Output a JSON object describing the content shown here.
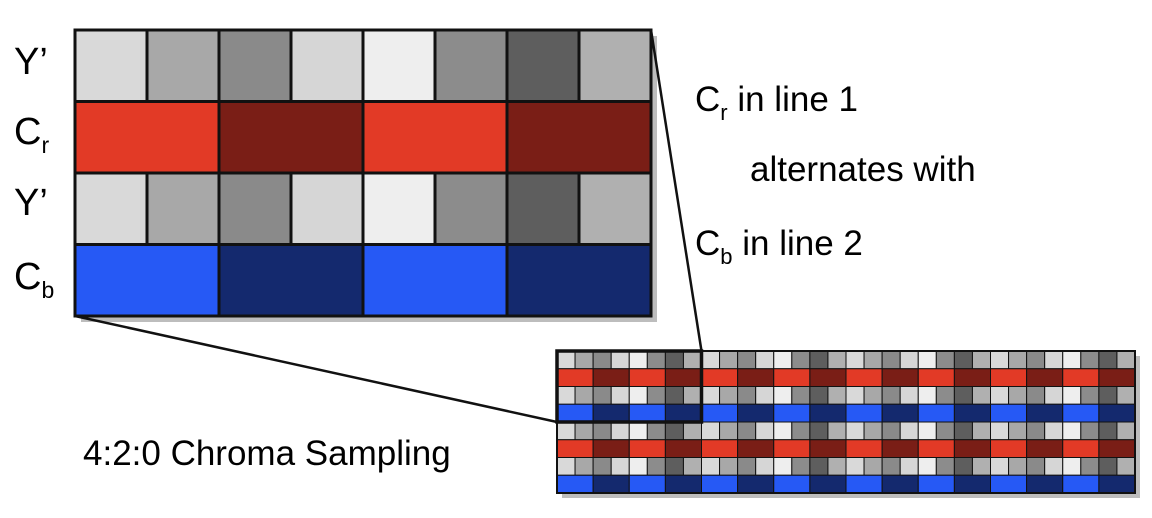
{
  "labels": {
    "rows": [
      {
        "main": "Y’",
        "sub": ""
      },
      {
        "main": "C",
        "sub": "r"
      },
      {
        "main": "Y’",
        "sub": ""
      },
      {
        "main": "C",
        "sub": "b"
      }
    ]
  },
  "captions": {
    "cr_line": {
      "main": "C",
      "sub": "r",
      "rest": " in line 1"
    },
    "alternates": "alternates with",
    "cb_line": {
      "main": "C",
      "sub": "b",
      "rest": " in line 2"
    },
    "title": "4:2:0 Chroma Sampling"
  },
  "colors": {
    "luma_row_1": [
      "#d9d9d9",
      "#a8a8a8",
      "#8a8a8a",
      "#d6d6d6",
      "#eeeeee",
      "#8c8c8c",
      "#5e5e5e",
      "#b0b0b0"
    ],
    "luma_row_2": [
      "#d9d9d9",
      "#a8a8a8",
      "#8a8a8a",
      "#d6d6d6",
      "#eeeeee",
      "#8c8c8c",
      "#5e5e5e",
      "#b0b0b0"
    ],
    "cr_pair": [
      "#e23a26",
      "#7a1e16",
      "#e23a26",
      "#7a1e16"
    ],
    "cb_pair": [
      "#2659f5",
      "#14296e",
      "#2659f5",
      "#14296e"
    ],
    "grid_line": "#111111",
    "shadow": "#bdbdbd"
  }
}
